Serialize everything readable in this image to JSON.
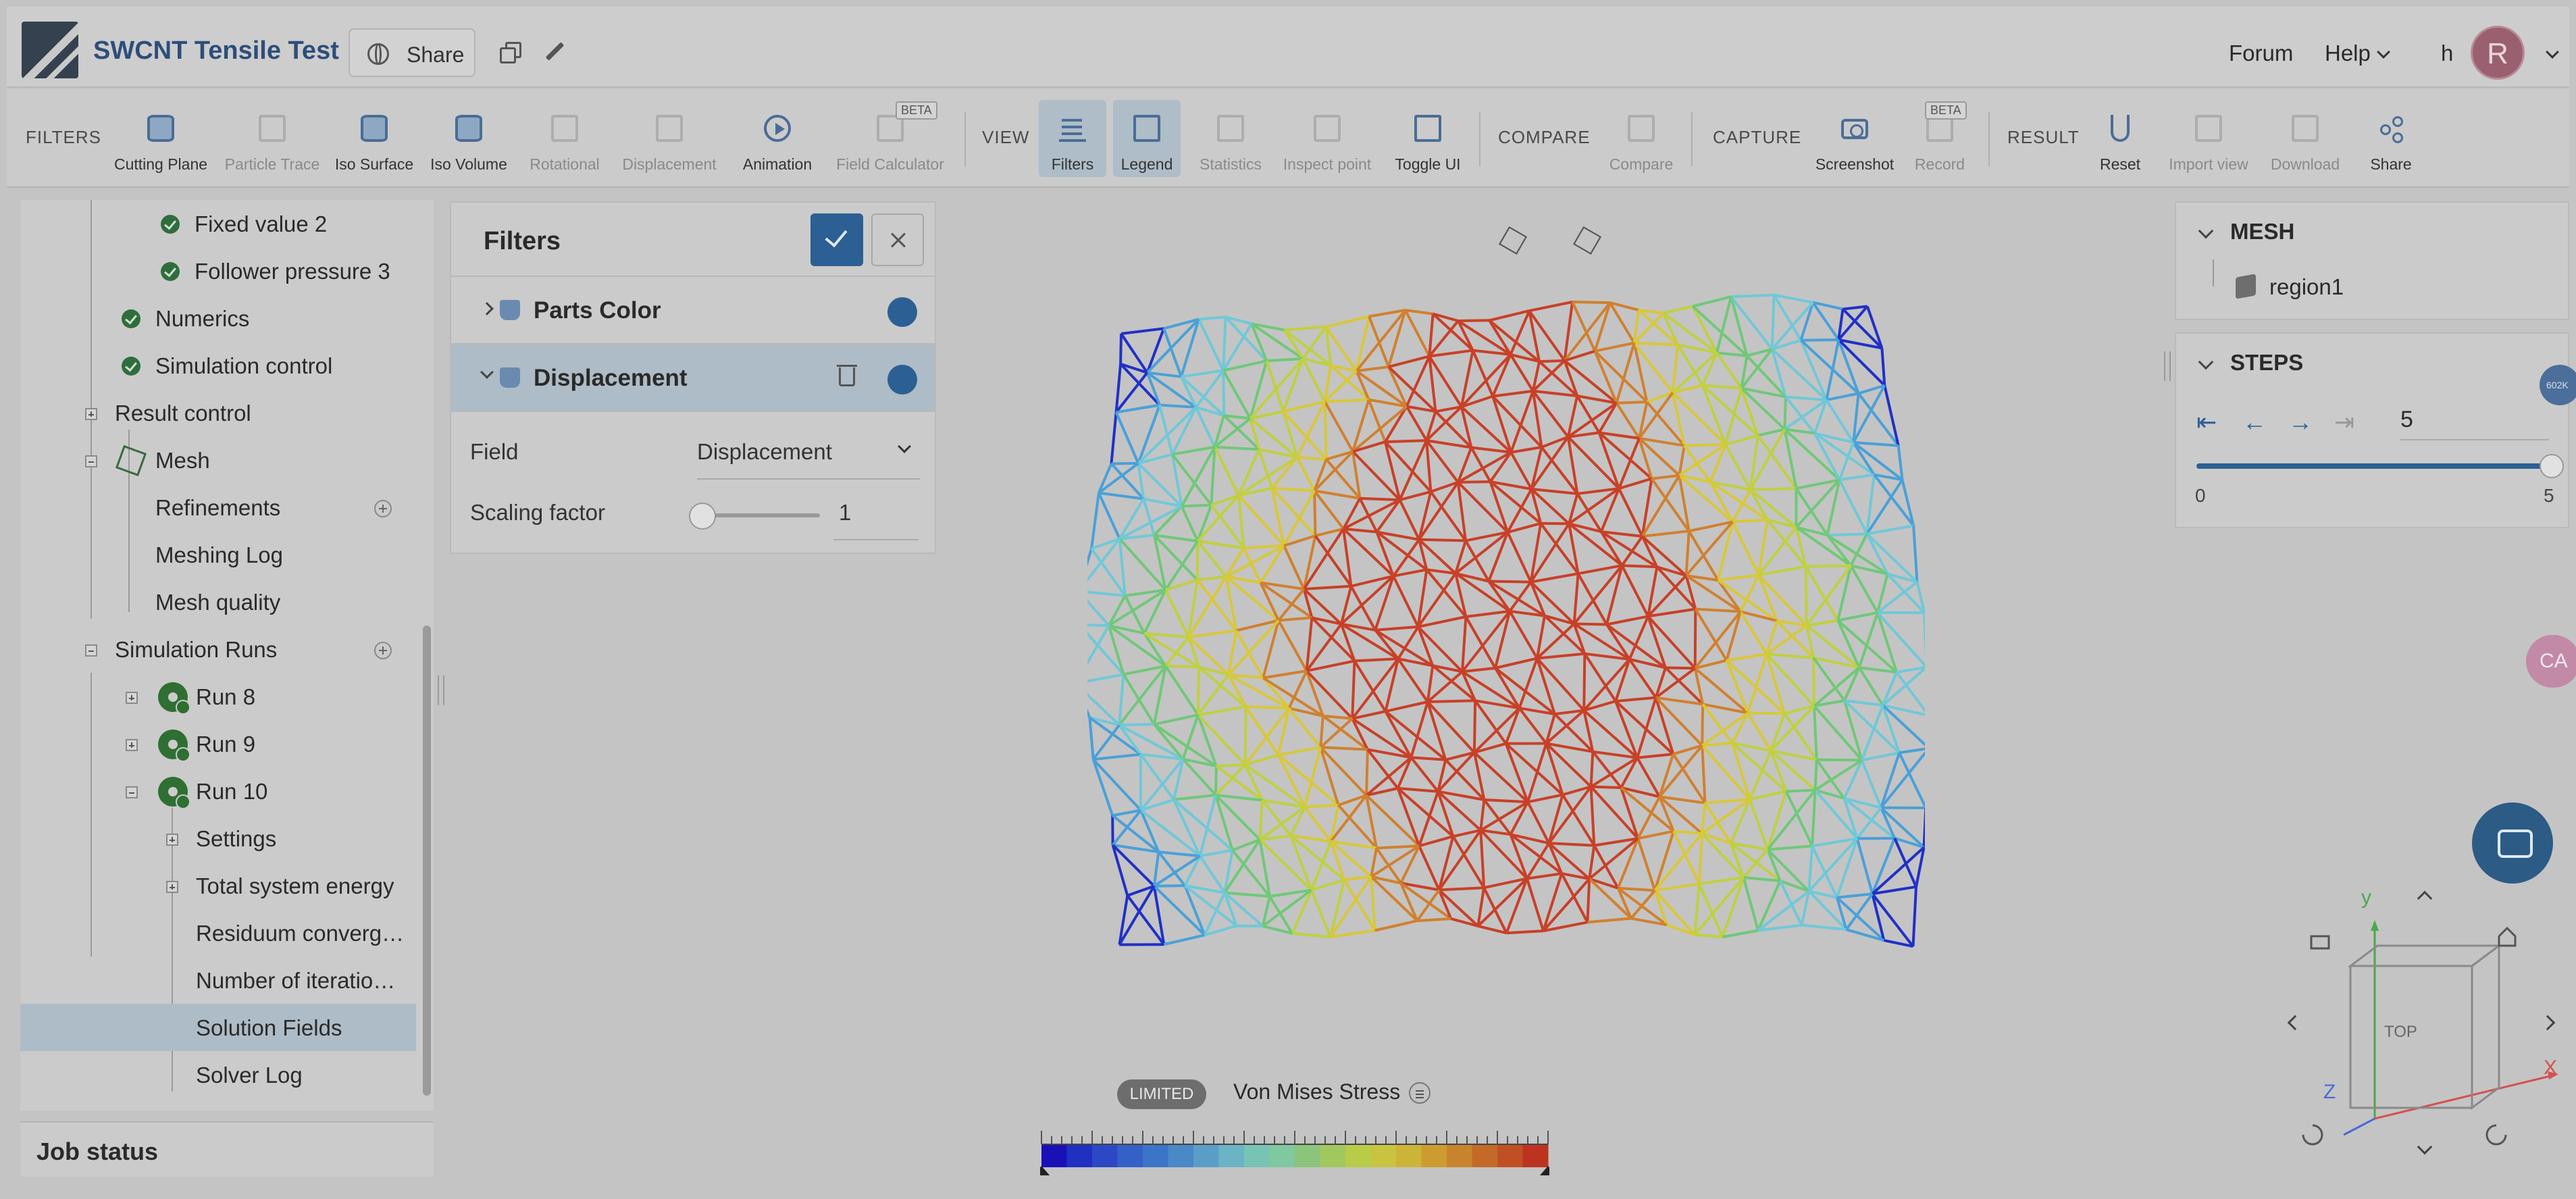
{
  "header": {
    "title": "SWCNT Tensile Test",
    "share_label": "Share",
    "forum_label": "Forum",
    "help_label": "Help",
    "user_letter": "h",
    "avatar_letter": "R"
  },
  "toolbar": {
    "filters_section": "FILTERS",
    "view_section": "VIEW",
    "compare_section": "COMPARE",
    "capture_section": "CAPTURE",
    "result_section": "RESULT",
    "beta": "BETA",
    "items": {
      "cutting_plane": "Cutting Plane",
      "particle_trace": "Particle Trace",
      "iso_surface": "Iso Surface",
      "iso_volume": "Iso Volume",
      "rotational": "Rotational",
      "displacement": "Displacement",
      "animation": "Animation",
      "field_calculator": "Field Calculator",
      "filters": "Filters",
      "legend": "Legend",
      "statistics": "Statistics",
      "inspect_point": "Inspect point",
      "toggle_ui": "Toggle UI",
      "compare": "Compare",
      "screenshot": "Screenshot",
      "record": "Record",
      "reset": "Reset",
      "import_view": "Import view",
      "download": "Download",
      "share": "Share"
    }
  },
  "tree": {
    "items": [
      {
        "label": "Fixed value 2"
      },
      {
        "label": "Follower pressure 3"
      },
      {
        "label": "Numerics"
      },
      {
        "label": "Simulation control"
      },
      {
        "label": "Result control"
      },
      {
        "label": "Mesh"
      },
      {
        "label": "Refinements"
      },
      {
        "label": "Meshing Log"
      },
      {
        "label": "Mesh quality"
      },
      {
        "label": "Simulation Runs"
      },
      {
        "label": "Run 8"
      },
      {
        "label": "Run 9"
      },
      {
        "label": "Run 10"
      },
      {
        "label": "Settings"
      },
      {
        "label": "Total system energy"
      },
      {
        "label": "Residuum converg…"
      },
      {
        "label": "Number of iteratio…"
      },
      {
        "label": "Solution Fields"
      },
      {
        "label": "Solver Log"
      }
    ],
    "job_status": "Job status"
  },
  "filters_panel": {
    "title": "Filters",
    "parts_color": "Parts Color",
    "displacement": "Displacement",
    "field_label": "Field",
    "field_value": "Displacement",
    "scaling_label": "Scaling factor",
    "scaling_value": "1"
  },
  "legend": {
    "badge": "LIMITED",
    "title": "Von Mises Stress",
    "colors": [
      "#1a10b8",
      "#2030c0",
      "#2c48c4",
      "#3460c8",
      "#3c74c8",
      "#4a88c8",
      "#5a9ec8",
      "#6ab4c4",
      "#78c4b4",
      "#80c8a0",
      "#8cc47c",
      "#a0c85c",
      "#b8cc48",
      "#c8c440",
      "#ccb438",
      "#cc9c30",
      "#c8842c",
      "#c46a28",
      "#c05024",
      "#bc3420"
    ]
  },
  "mesh_panel": {
    "title": "MESH",
    "region": "region1"
  },
  "steps_panel": {
    "title": "STEPS",
    "current": "5",
    "min": "0",
    "max": "5",
    "progress": 1.0
  },
  "side": {
    "badge_text": "602K",
    "pink_text": "CA"
  },
  "navcube": {
    "y": "y",
    "x": "X",
    "z": "Z",
    "face": "TOP"
  }
}
